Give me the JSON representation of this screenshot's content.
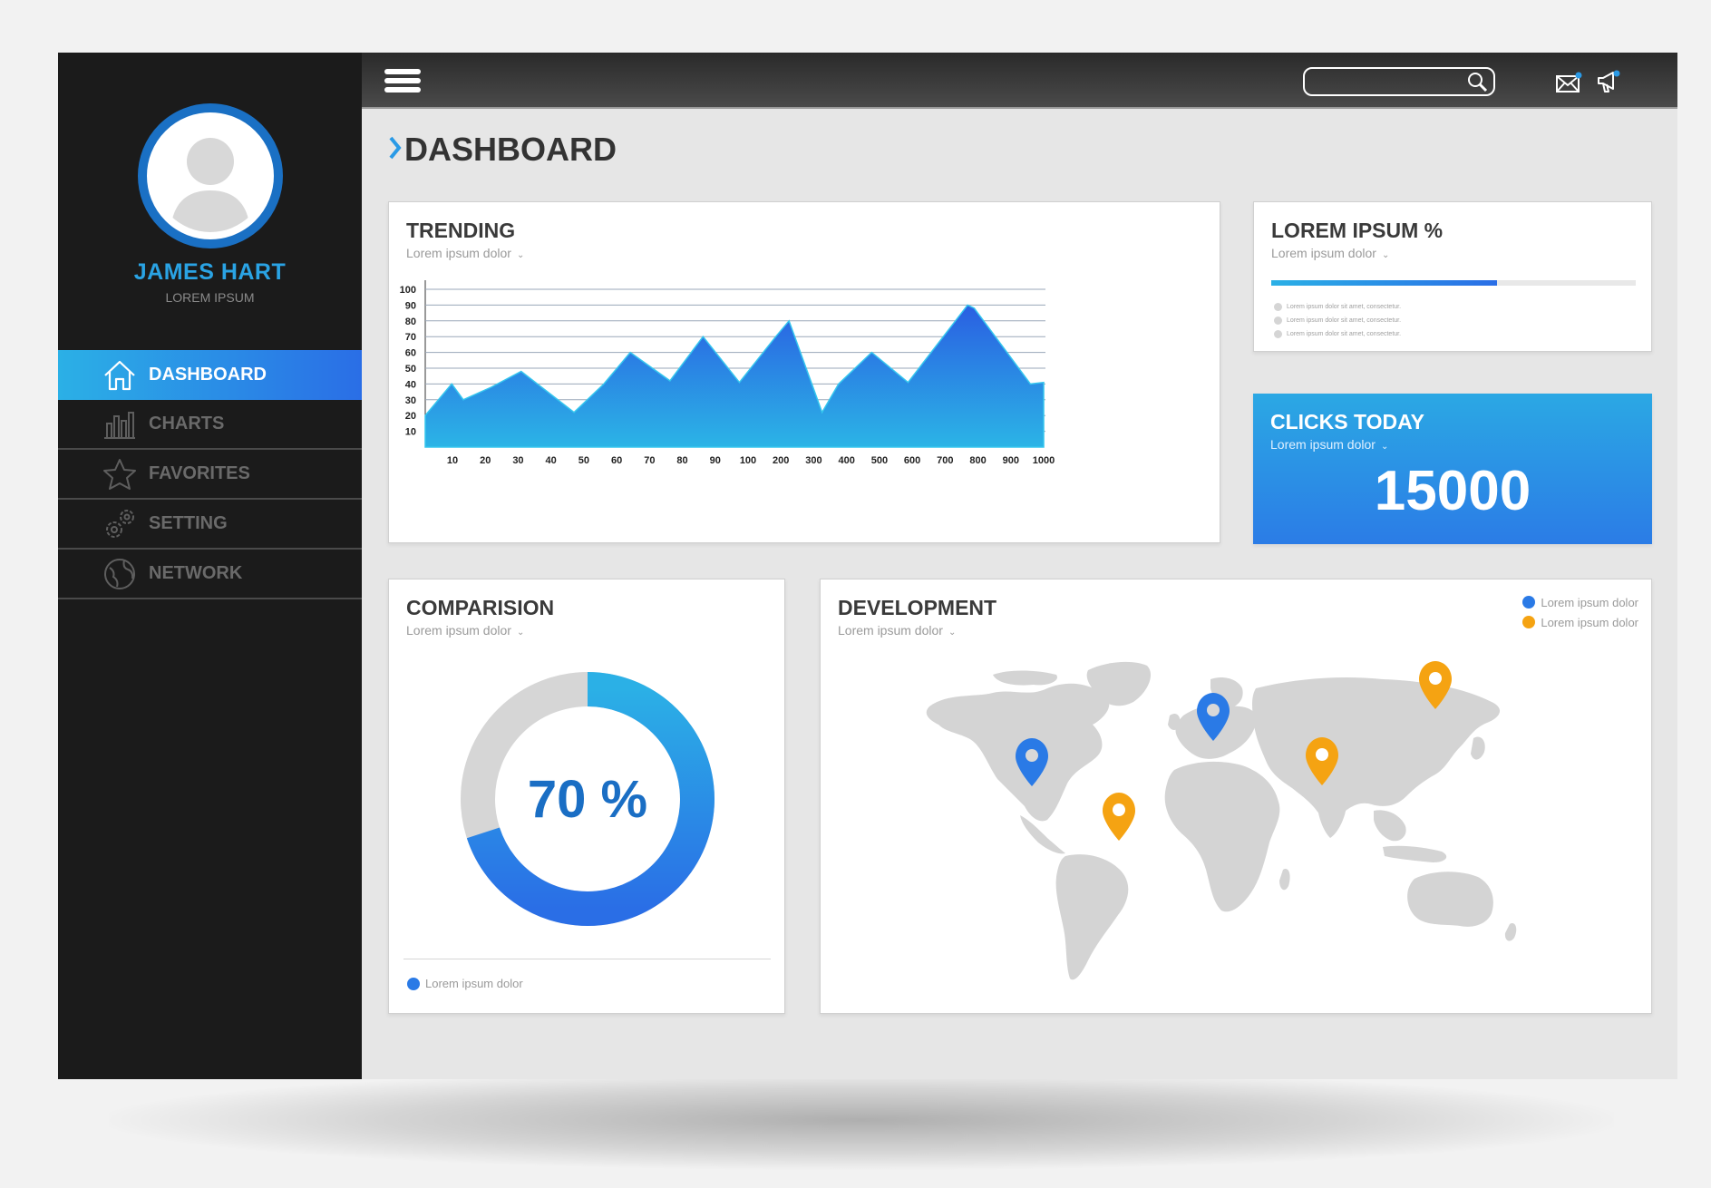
{
  "user": {
    "name": "JAMES HART",
    "subtitle": "LOREM IPSUM"
  },
  "nav": {
    "items": [
      {
        "label": "DASHBOARD",
        "icon": "home-icon",
        "active": true
      },
      {
        "label": "CHARTS",
        "icon": "bar-chart-icon",
        "active": false
      },
      {
        "label": "FAVORITES",
        "icon": "star-icon",
        "active": false
      },
      {
        "label": "SETTING",
        "icon": "gear-icon",
        "active": false
      },
      {
        "label": "NETWORK",
        "icon": "globe-icon",
        "active": false
      }
    ]
  },
  "topbar": {
    "search_placeholder": "",
    "icons": [
      "hamburger-icon",
      "search-icon",
      "mail-icon",
      "megaphone-icon"
    ]
  },
  "page": {
    "title": "DASHBOARD"
  },
  "trending": {
    "title": "TRENDING",
    "subtitle": "Lorem ipsum dolor"
  },
  "lorem_pct": {
    "title": "LOREM IPSUM %",
    "subtitle": "Lorem ipsum dolor",
    "progress": 0.62,
    "bullets": [
      "Lorem ipsum dolor sit amet, consectetur.",
      "Lorem ipsum dolor sit amet, consectetur.",
      "Lorem ipsum dolor sit amet, consectetur."
    ]
  },
  "clicks": {
    "title": "CLICKS TODAY",
    "subtitle": "Lorem ipsum dolor",
    "value": "15000"
  },
  "comparision": {
    "title": "COMPARISION",
    "subtitle": "Lorem ipsum dolor",
    "percent_label": "70 %",
    "legend": "Lorem ipsum dolor"
  },
  "development": {
    "title": "DEVELOPMENT",
    "subtitle": "Lorem ipsum dolor",
    "legend": [
      {
        "label": "Lorem ipsum dolor",
        "color": "#2a7ae6"
      },
      {
        "label": "Lorem ipsum dolor",
        "color": "#f5a312"
      }
    ]
  },
  "colors": {
    "accent_blue": "#2a6ee6",
    "accent_cyan": "#2bb0e6",
    "pin_orange": "#f5a312",
    "sidebar": "#1b1b1b"
  },
  "chart_data": [
    {
      "type": "area",
      "title": "TRENDING",
      "categories": [
        "10",
        "20",
        "30",
        "40",
        "50",
        "60",
        "70",
        "80",
        "90",
        "100",
        "200",
        "300",
        "400",
        "500",
        "600",
        "700",
        "800",
        "900",
        "1000"
      ],
      "points_x": [
        0,
        0.8,
        1.15,
        2,
        2.9,
        4.5,
        5.4,
        6.2,
        7.4,
        8.4,
        9.5,
        10.6,
        11.0,
        12.0,
        12.5,
        13.5,
        14.6,
        16.4,
        16.6,
        18.3,
        18.7
      ],
      "points_y": [
        20,
        40,
        30,
        38,
        48,
        22,
        40,
        60,
        42,
        70,
        41,
        70,
        80,
        22,
        40,
        60,
        41,
        90,
        88,
        40,
        41
      ],
      "ylim": [
        0,
        100
      ],
      "yticks": [
        10,
        20,
        30,
        40,
        50,
        60,
        70,
        80,
        90,
        100
      ],
      "grid": true
    },
    {
      "type": "pie",
      "title": "COMPARISION",
      "slices": [
        {
          "label": "Lorem ipsum dolor",
          "value": 70
        },
        {
          "label": "",
          "value": 30
        }
      ]
    }
  ]
}
